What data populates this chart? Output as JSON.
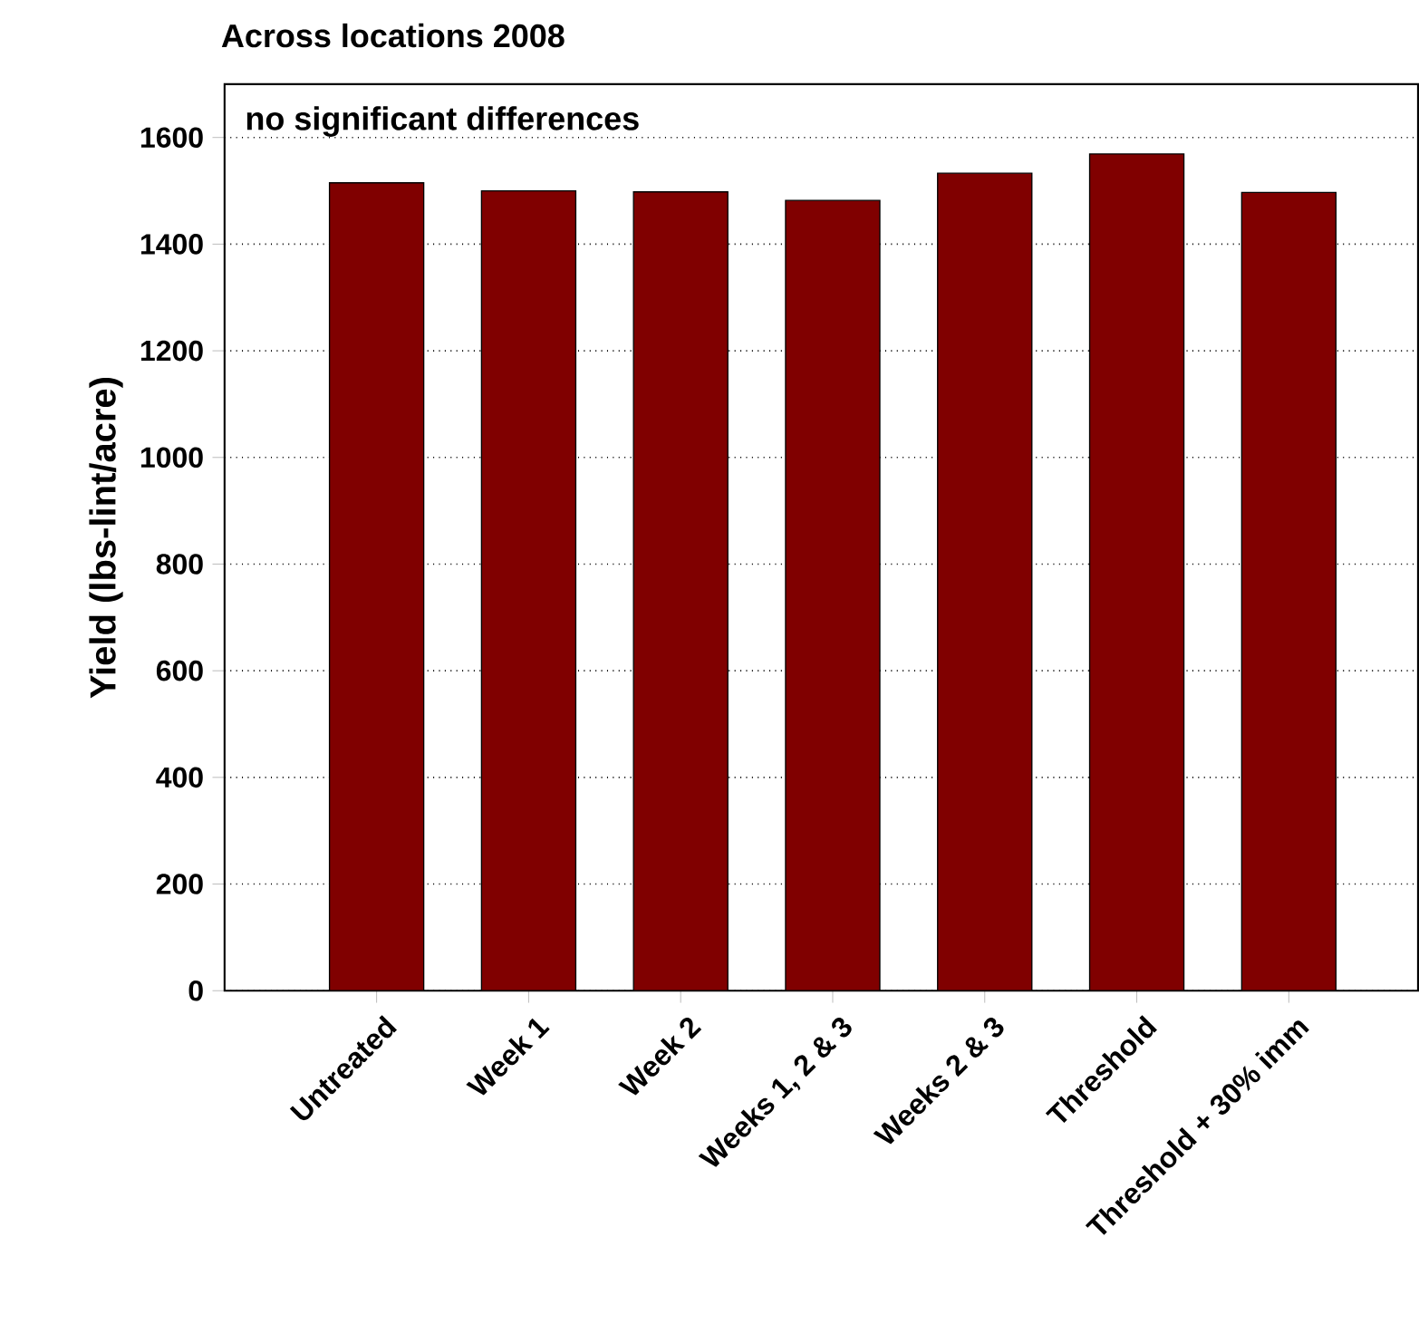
{
  "chart_data": {
    "type": "bar",
    "title": "Across locations 2008",
    "ylabel": "Yield (lbs-lint/acre)",
    "annotations": [
      "no significant differences"
    ],
    "categories": [
      "Untreated",
      "Week 1",
      "Week 2",
      "Weeks 1, 2 & 3",
      "Weeks 2 & 3",
      "Threshold",
      "Threshold + 30% imm"
    ],
    "values": [
      1515,
      1500,
      1498,
      1482,
      1533,
      1569,
      1497
    ],
    "color": "#800000",
    "ylim": [
      0,
      1700
    ],
    "yticks": [
      0,
      200,
      400,
      600,
      800,
      1000,
      1200,
      1400,
      1600
    ],
    "grid": "y"
  }
}
